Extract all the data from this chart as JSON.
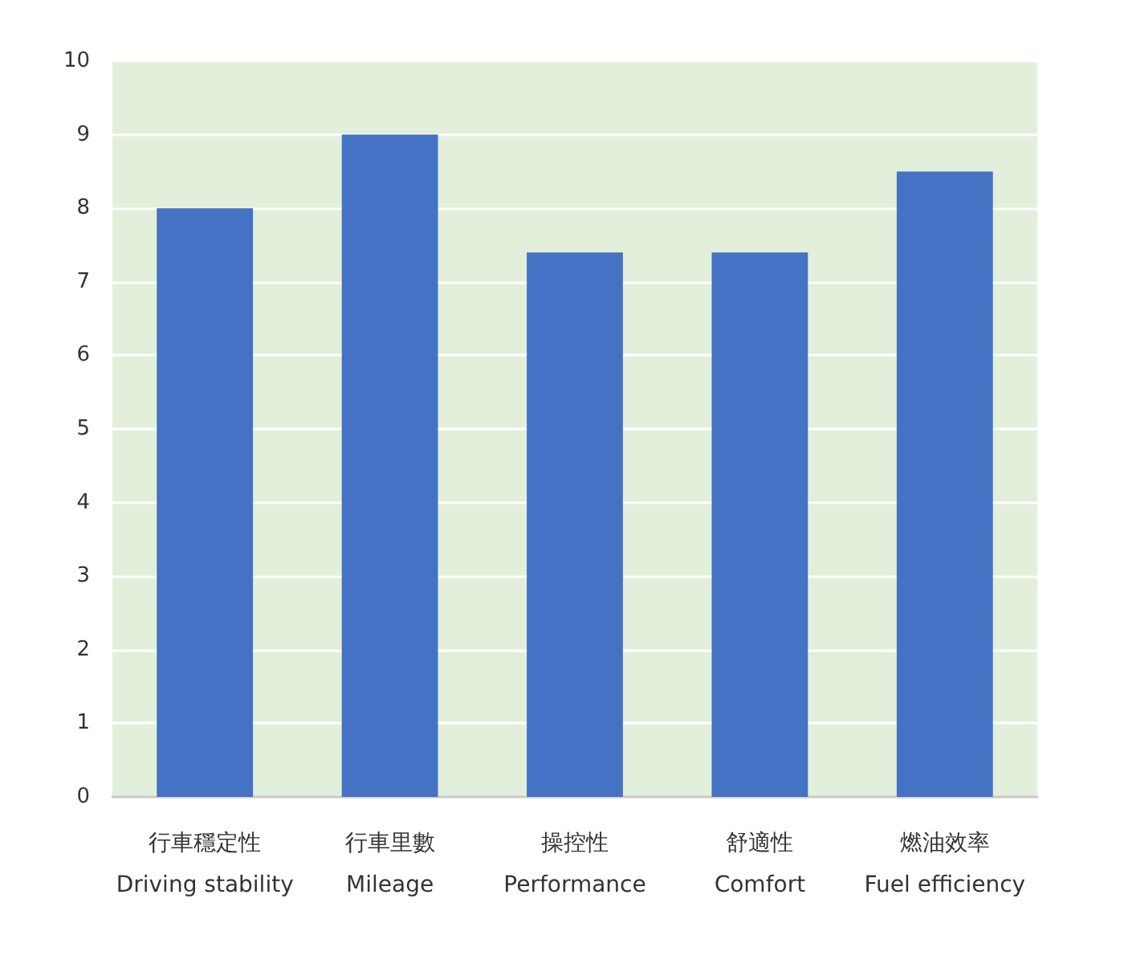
{
  "chart_data": {
    "type": "bar",
    "categories": [
      "行車穩定性\nDriving stability",
      "行車里數\nMileage",
      "操控性\nPerformance",
      "舒適性\nComfort",
      "燃油效率\nFuel efficiency"
    ],
    "values": [
      8,
      9,
      7.4,
      7.4,
      8.5
    ],
    "color": "#4472c4",
    "ylim": [
      0,
      10
    ],
    "yticks": [
      0,
      1,
      2,
      3,
      4,
      5,
      6,
      7,
      8,
      9,
      10
    ],
    "grid": "y"
  }
}
